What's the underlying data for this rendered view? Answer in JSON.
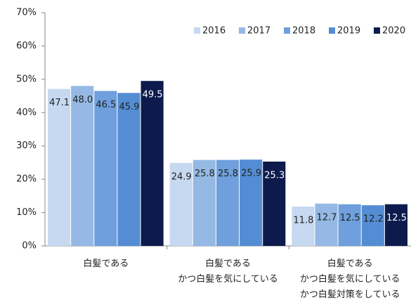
{
  "chart_data": {
    "type": "bar",
    "categories": [
      "白髪である",
      "白髪である\nかつ白髪を気にしている",
      "白髪である\nかつ白髪を気にしている\nかつ白髪対策をしている"
    ],
    "series": [
      {
        "name": "2016",
        "color": "#c6d9f1",
        "values": [
          47.1,
          24.9,
          11.8
        ],
        "value_labels": [
          "47.1",
          "24.9",
          "11.8"
        ]
      },
      {
        "name": "2017",
        "color": "#95b9e4",
        "values": [
          48.0,
          25.8,
          12.7
        ],
        "value_labels": [
          "48.0",
          "25.8",
          "12.7"
        ]
      },
      {
        "name": "2018",
        "color": "#6f9fdc",
        "values": [
          46.5,
          25.8,
          12.5
        ],
        "value_labels": [
          "46.5",
          "25.8",
          "12.5"
        ]
      },
      {
        "name": "2019",
        "color": "#548dd4",
        "values": [
          45.9,
          25.9,
          12.2
        ],
        "value_labels": [
          "45.9",
          "25.9",
          "12.2"
        ]
      },
      {
        "name": "2020",
        "color": "#0d1b4c",
        "values": [
          49.5,
          25.3,
          12.5
        ],
        "value_labels": [
          "49.5",
          "25.3",
          "12.5"
        ]
      }
    ],
    "ylim": [
      0,
      70
    ],
    "yticks": [
      {
        "value": 0,
        "label": "0%"
      },
      {
        "value": 10,
        "label": "10%"
      },
      {
        "value": 20,
        "label": "20%"
      },
      {
        "value": 30,
        "label": "30%"
      },
      {
        "value": 40,
        "label": "40%"
      },
      {
        "value": 50,
        "label": "50%"
      },
      {
        "value": 60,
        "label": "60%"
      },
      {
        "value": 70,
        "label": "70%"
      }
    ],
    "grid": false,
    "legend": "top-right"
  }
}
